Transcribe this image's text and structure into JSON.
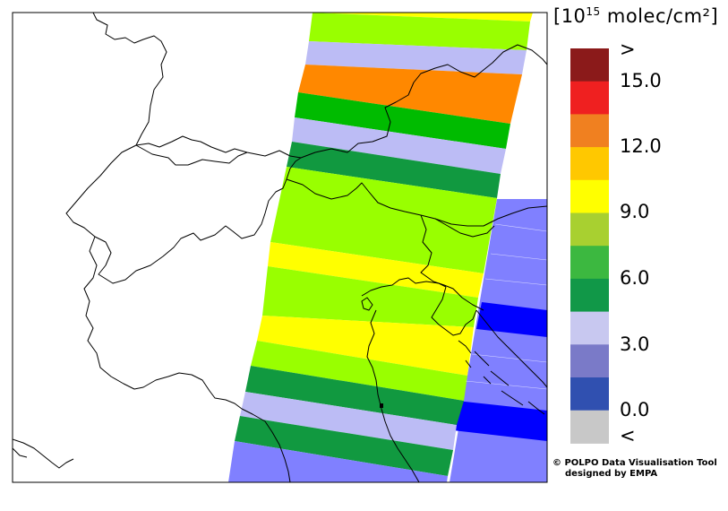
{
  "legend": {
    "unit_prefix": "[10",
    "unit_exponent": "15",
    "unit_suffix": " molec/cm²]",
    "labels": [
      ">",
      "15.0",
      "12.0",
      "9.0",
      "6.0",
      "3.0",
      "0.0",
      "<"
    ],
    "colors": [
      "#8b1a1a",
      "#ef2020",
      "#f08020",
      "#ffc800",
      "#ffff00",
      "#a8d030",
      "#3cb840",
      "#119848",
      "#c8c8f0",
      "#7a7ac8",
      "#3050b0",
      "#c8c8c8"
    ]
  },
  "credit": {
    "line1": "© POLPO Data Visualisation Tool",
    "line2": "designed by EMPA"
  },
  "map": {
    "swath_colors": {
      "yellow": "#ffff00",
      "lime": "#99ff00",
      "lavender": "#bcbcf5",
      "orange": "#ff8800",
      "green": "#00bb00",
      "darkgreen": "#119940",
      "blue": "#8080ff",
      "deepblue": "#0000ff"
    }
  }
}
